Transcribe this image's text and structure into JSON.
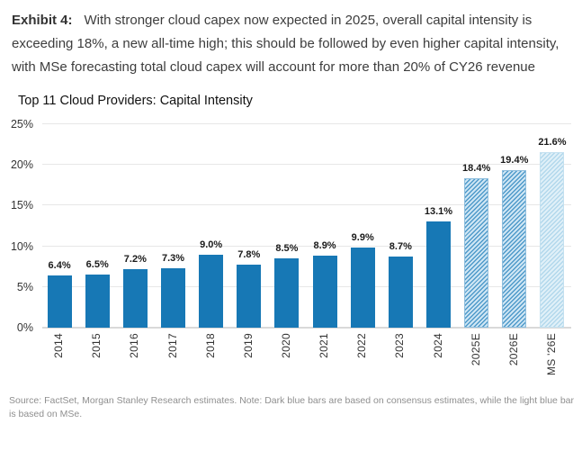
{
  "header": {
    "exhibit_label": "Exhibit 4:",
    "text": "With stronger cloud capex now expected in 2025, overall capital intensity is exceeding 18%, a new all-time high; this should be followed by even higher capital intensity, with MSe forecasting total cloud capex will account for more than 20% of CY26 revenue"
  },
  "chart_data": {
    "type": "bar",
    "title": "Top 11 Cloud Providers: Capital Intensity",
    "categories": [
      "2014",
      "2015",
      "2016",
      "2017",
      "2018",
      "2019",
      "2020",
      "2021",
      "2022",
      "2023",
      "2024",
      "2025E",
      "2026E",
      "MS '26E"
    ],
    "values": [
      6.4,
      6.5,
      7.2,
      7.3,
      9.0,
      7.8,
      8.5,
      8.9,
      9.9,
      8.7,
      13.1,
      18.4,
      19.4,
      21.6
    ],
    "value_labels": [
      "6.4%",
      "6.5%",
      "7.2%",
      "7.3%",
      "9.0%",
      "7.8%",
      "8.5%",
      "8.9%",
      "9.9%",
      "8.7%",
      "13.1%",
      "18.4%",
      "19.4%",
      "21.6%"
    ],
    "bar_styles": [
      "solid",
      "solid",
      "solid",
      "solid",
      "solid",
      "solid",
      "solid",
      "solid",
      "solid",
      "solid",
      "solid",
      "hatched",
      "hatched",
      "hatched-light"
    ],
    "xlabel": "",
    "ylabel": "",
    "ylim": [
      0,
      25
    ],
    "ytick_labels": [
      "0%",
      "5%",
      "10%",
      "15%",
      "20%",
      "25%"
    ],
    "grid": true,
    "legend": "none",
    "colors": {
      "solid_bar": "#1778b5",
      "hatched_stripe": "#4f9aca",
      "hatched_bg": "#cfe6f4",
      "hatched_light_stripe": "#b2d8ec",
      "hatched_light_bg": "#e0f0f8",
      "gridline": "#e7e7e7",
      "baseline": "#d9d9d9"
    }
  },
  "footer": {
    "source_note": "Source: FactSet, Morgan Stanley Research estimates. Note: Dark blue bars are based on consensus estimates, while the light blue bar is based on MSe."
  }
}
